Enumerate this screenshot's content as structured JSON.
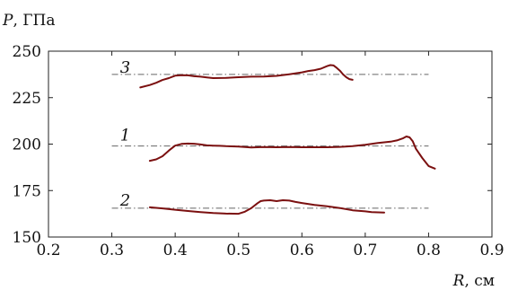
{
  "chart_data": {
    "type": "line",
    "ylabel": "P, ГПа",
    "xlabel": "R, см",
    "xlim": [
      0.2,
      0.9
    ],
    "ylim": [
      150,
      250
    ],
    "x_ticks": [
      0.2,
      0.3,
      0.4,
      0.5,
      0.6,
      0.7,
      0.8,
      0.9
    ],
    "x_tick_labels": [
      "0.2",
      "0.3",
      "0.4",
      "0.5",
      "0.6",
      "0.7",
      "0.8",
      "0.9"
    ],
    "y_ticks": [
      150,
      175,
      200,
      225,
      250
    ],
    "y_tick_labels": [
      "150",
      "175",
      "200",
      "225",
      "250"
    ],
    "grid": false,
    "series_color": "#7b1010",
    "reference_color": "#666666",
    "series": [
      {
        "name": "1",
        "label_at": [
          0.313,
          202
        ],
        "reference": {
          "y": 199,
          "x_range": [
            0.3,
            0.8
          ]
        },
        "x": [
          0.36,
          0.37,
          0.38,
          0.39,
          0.4,
          0.41,
          0.42,
          0.43,
          0.44,
          0.45,
          0.46,
          0.47,
          0.48,
          0.5,
          0.52,
          0.54,
          0.56,
          0.58,
          0.6,
          0.62,
          0.64,
          0.66,
          0.68,
          0.7,
          0.72,
          0.74,
          0.75,
          0.76,
          0.765,
          0.77,
          0.775,
          0.78,
          0.79,
          0.8,
          0.81
        ],
        "y": [
          191,
          191.8,
          193.5,
          196.5,
          199.2,
          200.1,
          200.3,
          200.2,
          199.8,
          199.3,
          199.2,
          199.1,
          198.9,
          198.7,
          198.2,
          198.4,
          198.3,
          198.4,
          198.3,
          198.3,
          198.3,
          198.5,
          198.9,
          199.6,
          200.6,
          201.3,
          202.0,
          203.2,
          204.1,
          203.6,
          201.5,
          197.5,
          192.5,
          188.2,
          186.8
        ]
      },
      {
        "name": "2",
        "label_at": [
          0.313,
          167
        ],
        "reference": {
          "y": 165.5,
          "x_range": [
            0.3,
            0.8
          ]
        },
        "x": [
          0.36,
          0.38,
          0.4,
          0.42,
          0.44,
          0.46,
          0.48,
          0.5,
          0.51,
          0.52,
          0.53,
          0.535,
          0.54,
          0.55,
          0.56,
          0.57,
          0.58,
          0.59,
          0.6,
          0.62,
          0.64,
          0.66,
          0.68,
          0.7,
          0.71,
          0.72,
          0.73
        ],
        "y": [
          166.0,
          165.4,
          164.7,
          164.0,
          163.4,
          162.9,
          162.6,
          162.5,
          163.6,
          165.5,
          168.2,
          169.3,
          169.6,
          169.8,
          169.3,
          169.8,
          169.6,
          168.9,
          168.3,
          167.3,
          166.5,
          165.6,
          164.4,
          163.8,
          163.4,
          163.3,
          163.2
        ]
      },
      {
        "name": "3",
        "label_at": [
          0.313,
          238.5
        ],
        "reference": {
          "y": 237.5,
          "x_range": [
            0.3,
            0.8
          ]
        },
        "x": [
          0.345,
          0.36,
          0.37,
          0.38,
          0.39,
          0.4,
          0.41,
          0.42,
          0.43,
          0.44,
          0.45,
          0.46,
          0.48,
          0.5,
          0.52,
          0.54,
          0.56,
          0.58,
          0.6,
          0.61,
          0.62,
          0.63,
          0.64,
          0.645,
          0.65,
          0.655,
          0.66,
          0.665,
          0.67,
          0.675,
          0.68
        ],
        "y": [
          230.5,
          231.8,
          233.0,
          234.5,
          235.5,
          236.8,
          237.1,
          237.0,
          236.5,
          236.3,
          235.9,
          235.5,
          235.6,
          236.0,
          236.3,
          236.4,
          236.7,
          237.6,
          238.6,
          239.3,
          239.8,
          240.6,
          242.0,
          242.5,
          242.3,
          241.0,
          239.5,
          237.5,
          236.0,
          235.0,
          234.6
        ]
      }
    ]
  }
}
